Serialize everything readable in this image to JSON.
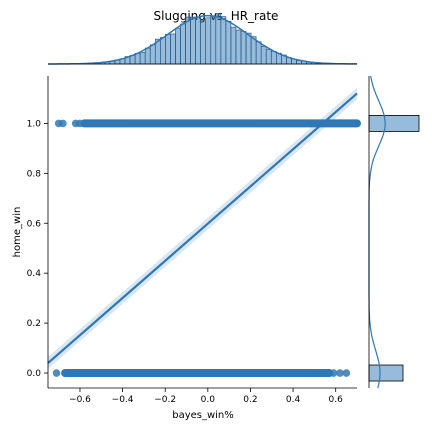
{
  "chart_data": {
    "type": "scatter",
    "title": "Slugging vs. HR_rate",
    "xlabel": "bayes_win%",
    "ylabel": "home_win",
    "xlim": [
      -0.75,
      0.7
    ],
    "ylim": [
      -0.06,
      1.19
    ],
    "xticks": [
      -0.6,
      -0.4,
      -0.2,
      0.0,
      0.2,
      0.4,
      0.6
    ],
    "xtick_labels": [
      "−0.6",
      "−0.4",
      "−0.2",
      "0.0",
      "0.2",
      "0.4",
      "0.6"
    ],
    "yticks": [
      0.0,
      0.2,
      0.4,
      0.6,
      0.8,
      1.0
    ],
    "ytick_labels": [
      "0.0",
      "0.2",
      "0.4",
      "0.6",
      "0.8",
      "1.0"
    ],
    "grid": false,
    "color": "#2f78b5",
    "scatter_bands": [
      {
        "y": 1.0,
        "x_min": -0.7,
        "x_max": 0.7,
        "dense_from": -0.58,
        "sparse_x": [
          -0.7,
          -0.68,
          -0.62,
          -0.6,
          0.66,
          0.69
        ]
      },
      {
        "y": 0.0,
        "x_min": -0.71,
        "x_max": 0.65,
        "dense_from": -0.67,
        "dense_to": 0.57,
        "sparse_x": [
          -0.71,
          0.59,
          0.62,
          0.65
        ]
      }
    ],
    "regression_line": {
      "x": [
        -0.75,
        0.7
      ],
      "y": [
        0.04,
        1.12
      ]
    },
    "marginal_x": {
      "type": "histogram_kde",
      "bin_range": [
        -0.72,
        0.7
      ],
      "peak_x": 0.0,
      "std": 0.19
    },
    "marginal_y": {
      "type": "histogram_kde",
      "bars": [
        {
          "y": 1.0,
          "relative_width": 1.0
        },
        {
          "y": 0.0,
          "relative_width": 0.68
        }
      ]
    }
  }
}
